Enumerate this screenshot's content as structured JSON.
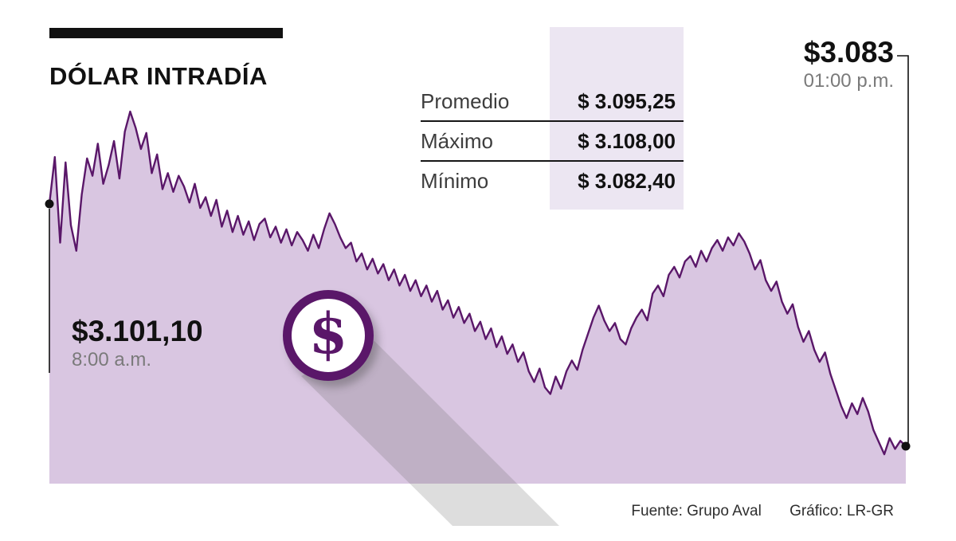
{
  "title": {
    "text": "DÓLAR INTRADÍA"
  },
  "stats": {
    "rows": [
      {
        "label": "Promedio",
        "value": "$ 3.095,25"
      },
      {
        "label": "Máximo",
        "value": "$ 3.108,00"
      },
      {
        "label": "Mínimo",
        "value": "$ 3.082,40"
      }
    ]
  },
  "annotations": {
    "start": {
      "price": "$3.101,10",
      "time": "8:00 a.m."
    },
    "end": {
      "price": "$3.083",
      "time": "01:00 p.m."
    }
  },
  "icon": {
    "dollar_symbol": "$"
  },
  "footer": {
    "source": "Fuente: Grupo Aval",
    "credit": "Gráfico: LR-GR"
  },
  "colors": {
    "line": "#5a1769",
    "area": "#d9c6e1",
    "lavender": "#ece6f2",
    "shadow": "rgba(100,100,100,0.22)",
    "gray": "#7a7a7a"
  },
  "chart_data": {
    "type": "area",
    "title": "DÓLAR INTRADÍA",
    "x_range": [
      "8:00 a.m.",
      "01:00 p.m."
    ],
    "start_value": 3101.1,
    "end_value": 3083.0,
    "y_stats": {
      "promedio": 3095.25,
      "maximo": 3108.0,
      "minimo": 3082.4
    },
    "ylim": [
      3079,
      3110
    ],
    "grid": false,
    "legend": false,
    "series": [
      {
        "name": "Dólar intradía (COP por USD)",
        "values": [
          3101.1,
          3104.6,
          3098.2,
          3104.2,
          3099.5,
          3097.6,
          3101.8,
          3104.5,
          3103.2,
          3105.6,
          3102.6,
          3104.0,
          3105.8,
          3103.0,
          3106.5,
          3108.0,
          3106.8,
          3105.2,
          3106.4,
          3103.4,
          3104.8,
          3102.2,
          3103.4,
          3102.0,
          3103.2,
          3102.4,
          3101.2,
          3102.6,
          3100.8,
          3101.6,
          3100.2,
          3101.4,
          3099.4,
          3100.6,
          3099.0,
          3100.2,
          3098.8,
          3099.8,
          3098.4,
          3099.6,
          3100.0,
          3098.6,
          3099.4,
          3098.2,
          3099.2,
          3098.0,
          3099.0,
          3098.4,
          3097.6,
          3098.8,
          3097.8,
          3099.2,
          3100.4,
          3099.6,
          3098.6,
          3097.8,
          3098.2,
          3096.8,
          3097.4,
          3096.2,
          3097.0,
          3095.9,
          3096.6,
          3095.4,
          3096.2,
          3095.0,
          3095.8,
          3094.6,
          3095.4,
          3094.2,
          3095.0,
          3093.8,
          3094.6,
          3093.2,
          3093.9,
          3092.6,
          3093.4,
          3092.2,
          3092.9,
          3091.6,
          3092.3,
          3091.0,
          3091.8,
          3090.4,
          3091.2,
          3089.9,
          3090.6,
          3089.3,
          3090.0,
          3088.6,
          3087.8,
          3088.8,
          3087.4,
          3086.9,
          3088.2,
          3087.3,
          3088.6,
          3089.4,
          3088.7,
          3090.2,
          3091.4,
          3092.6,
          3093.5,
          3092.4,
          3091.6,
          3092.2,
          3091.0,
          3090.6,
          3091.8,
          3092.6,
          3093.2,
          3092.4,
          3094.4,
          3095.0,
          3094.2,
          3095.8,
          3096.4,
          3095.6,
          3096.8,
          3097.2,
          3096.4,
          3097.6,
          3096.8,
          3097.8,
          3098.4,
          3097.6,
          3098.6,
          3098.0,
          3098.9,
          3098.3,
          3097.4,
          3096.2,
          3096.9,
          3095.4,
          3094.6,
          3095.3,
          3093.8,
          3092.9,
          3093.6,
          3091.9,
          3090.8,
          3091.6,
          3090.2,
          3089.3,
          3090.0,
          3088.4,
          3087.2,
          3086.0,
          3085.1,
          3086.2,
          3085.4,
          3086.6,
          3085.6,
          3084.2,
          3083.3,
          3082.4,
          3083.6,
          3082.8,
          3083.4,
          3083.0
        ]
      }
    ]
  }
}
